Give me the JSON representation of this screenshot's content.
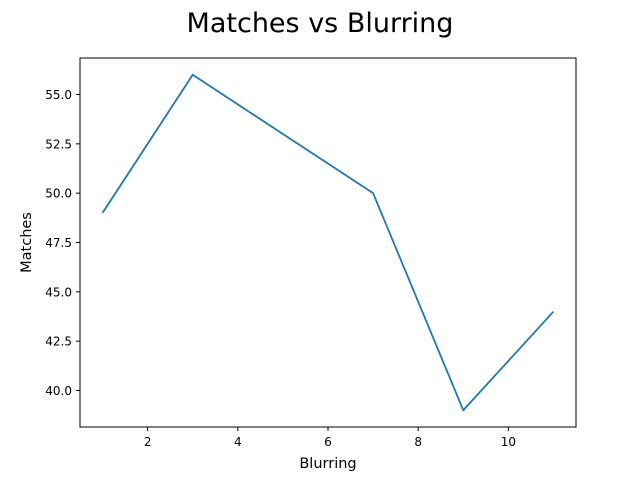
{
  "chart_data": {
    "type": "line",
    "title": "Matches vs Blurring",
    "xlabel": "Blurring",
    "ylabel": "Matches",
    "x": [
      1,
      3,
      5,
      7,
      9,
      11
    ],
    "series": [
      {
        "values": [
          49,
          56,
          53,
          50,
          39,
          44
        ]
      }
    ],
    "xlim": [
      0.5,
      11.5
    ],
    "ylim": [
      38.15,
      56.85
    ],
    "xticks": [
      2,
      4,
      6,
      8,
      10
    ],
    "xtick_labels": [
      "2",
      "4",
      "6",
      "8",
      "10"
    ],
    "yticks": [
      40.0,
      42.5,
      45.0,
      47.5,
      50.0,
      52.5,
      55.0
    ],
    "ytick_labels": [
      "40.0",
      "42.5",
      "45.0",
      "47.5",
      "50.0",
      "52.5",
      "55.0"
    ],
    "grid": false,
    "legend": "none",
    "colors": {
      "line": "#1f77b4",
      "axes": "#000000",
      "background": "#ffffff"
    }
  }
}
